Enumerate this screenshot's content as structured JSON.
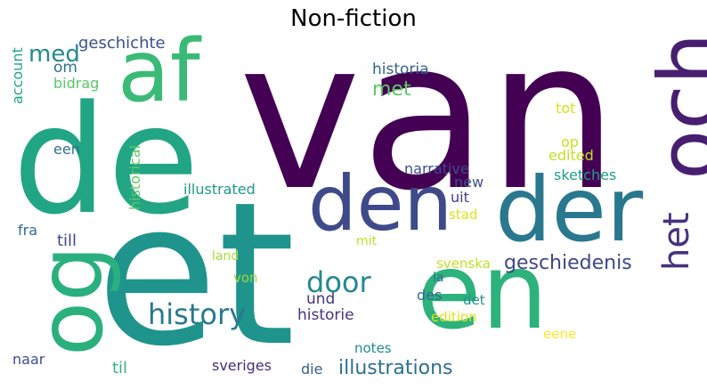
{
  "title": "Non-fiction",
  "words": [
    {
      "text": "van",
      "color": "#440154"
    },
    {
      "text": "de",
      "color": "#21a585"
    },
    {
      "text": "et",
      "color": "#1f948c"
    },
    {
      "text": "en",
      "color": "#2db27d"
    },
    {
      "text": "af",
      "color": "#3aba76"
    },
    {
      "text": "och",
      "color": "#481f70"
    },
    {
      "text": "der",
      "color": "#2a788e"
    },
    {
      "text": "den",
      "color": "#3e4a89"
    },
    {
      "text": "og",
      "color": "#2ab07f"
    },
    {
      "text": "het",
      "color": "#46327e"
    },
    {
      "text": "history",
      "color": "#29798e"
    },
    {
      "text": "door",
      "color": "#23898e"
    },
    {
      "text": "med",
      "color": "#238a8d"
    },
    {
      "text": "geschiedenis",
      "color": "#404688"
    },
    {
      "text": "met",
      "color": "#5ec962"
    },
    {
      "text": "geschichte",
      "color": "#3b528b"
    },
    {
      "text": "om",
      "color": "#2c738e"
    },
    {
      "text": "bidrag",
      "color": "#58c765"
    },
    {
      "text": "account",
      "color": "#20a386"
    },
    {
      "text": "historia",
      "color": "#33638d"
    },
    {
      "text": "tot",
      "color": "#d5e21a"
    },
    {
      "text": "op",
      "color": "#c8e020"
    },
    {
      "text": "edited",
      "color": "#c2df23"
    },
    {
      "text": "een",
      "color": "#2c728e"
    },
    {
      "text": "historical",
      "color": "#5ec962"
    },
    {
      "text": "narrative",
      "color": "#3e4c8a"
    },
    {
      "text": "sketches",
      "color": "#1f9e89"
    },
    {
      "text": "new",
      "color": "#3b528b"
    },
    {
      "text": "illustrated",
      "color": "#1f998a"
    },
    {
      "text": "uit",
      "color": "#424086"
    },
    {
      "text": "stad",
      "color": "#dde318"
    },
    {
      "text": "fra",
      "color": "#306a8e"
    },
    {
      "text": "till",
      "color": "#3f4889"
    },
    {
      "text": "mit",
      "color": "#c0df25"
    },
    {
      "text": "land",
      "color": "#a5db36"
    },
    {
      "text": "svenska",
      "color": "#c2df23"
    },
    {
      "text": "von",
      "color": "#9bd93c"
    },
    {
      "text": "la",
      "color": "#306a8e"
    },
    {
      "text": "und",
      "color": "#46337f"
    },
    {
      "text": "des",
      "color": "#306a8e"
    },
    {
      "text": "det",
      "color": "#21918c"
    },
    {
      "text": "historie",
      "color": "#46337f"
    },
    {
      "text": "edition",
      "color": "#dde318"
    },
    {
      "text": "eene",
      "color": "#fde725"
    },
    {
      "text": "notes",
      "color": "#228c8d"
    },
    {
      "text": "naar",
      "color": "#3b518b"
    },
    {
      "text": "til",
      "color": "#31b57b"
    },
    {
      "text": "sveriges",
      "color": "#472d7b"
    },
    {
      "text": "die",
      "color": "#355f8d"
    },
    {
      "text": "illustrations",
      "color": "#2c718e"
    }
  ]
}
